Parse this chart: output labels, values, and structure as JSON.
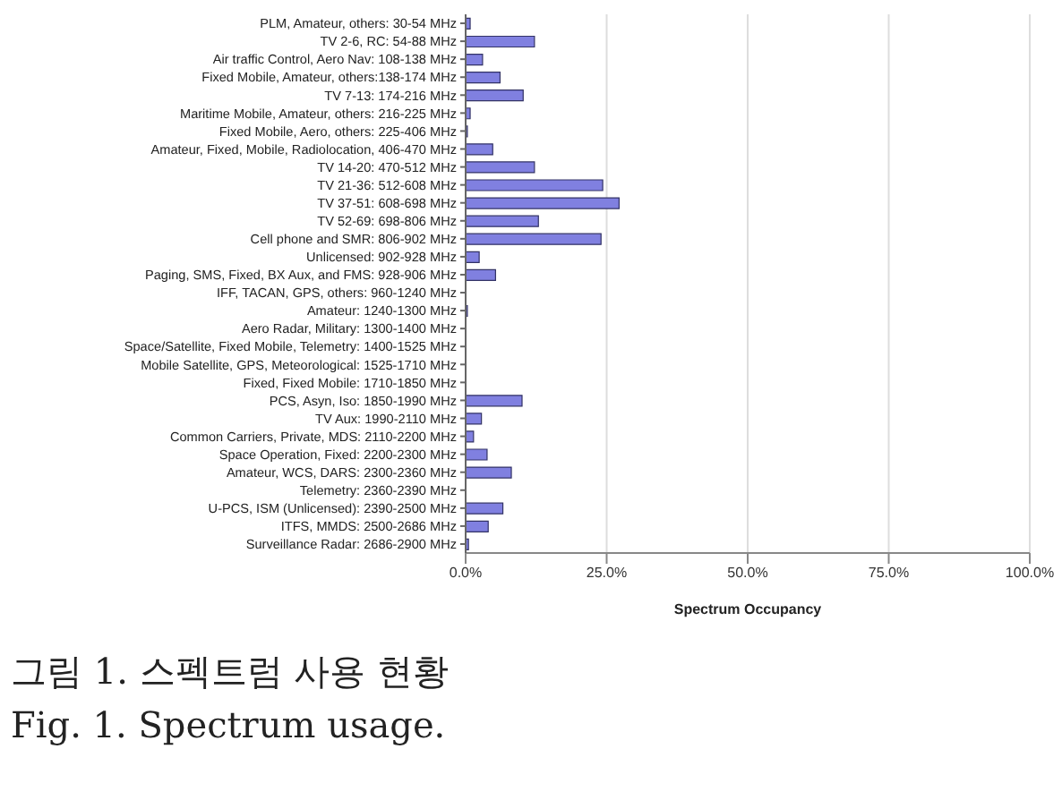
{
  "chart_data": {
    "type": "bar",
    "orientation": "horizontal",
    "xlabel": "Spectrum Occupancy",
    "categories": [
      "PLM, Amateur, others: 30-54 MHz",
      "TV 2-6, RC: 54-88 MHz",
      "Air traffic Control, Aero Nav: 108-138 MHz",
      "Fixed Mobile, Amateur, others:138-174 MHz",
      "TV 7-13: 174-216 MHz",
      "Maritime Mobile, Amateur, others: 216-225 MHz",
      "Fixed Mobile, Aero, others: 225-406 MHz",
      "Amateur, Fixed, Mobile, Radiolocation, 406-470 MHz",
      "TV 14-20: 470-512 MHz",
      "TV 21-36: 512-608 MHz",
      "TV 37-51: 608-698 MHz",
      "TV 52-69: 698-806 MHz",
      "Cell phone and SMR: 806-902 MHz",
      "Unlicensed: 902-928 MHz",
      "Paging, SMS, Fixed, BX Aux, and FMS: 928-906 MHz",
      "IFF, TACAN, GPS, others: 960-1240 MHz",
      "Amateur: 1240-1300 MHz",
      "Aero Radar, Military: 1300-1400 MHz",
      "Space/Satellite, Fixed Mobile, Telemetry: 1400-1525 MHz",
      "Mobile Satellite, GPS, Meteorological: 1525-1710 MHz",
      "Fixed, Fixed Mobile: 1710-1850 MHz",
      "PCS, Asyn, Iso: 1850-1990 MHz",
      "TV Aux: 1990-2110 MHz",
      "Common Carriers, Private, MDS: 2110-2200 MHz",
      "Space Operation, Fixed: 2200-2300 MHz",
      "Amateur, WCS, DARS: 2300-2360 MHz",
      "Telemetry: 2360-2390 MHz",
      "U-PCS, ISM (Unlicensed): 2390-2500 MHz",
      "ITFS, MMDS: 2500-2686 MHz",
      "Surveillance Radar: 2686-2900 MHz"
    ],
    "values": [
      0.8,
      12.2,
      3.0,
      6.1,
      10.2,
      0.8,
      0.3,
      4.8,
      12.2,
      24.3,
      27.2,
      12.9,
      24.0,
      2.4,
      5.3,
      0,
      0.3,
      0,
      0,
      0,
      0,
      10.0,
      2.8,
      1.4,
      3.8,
      8.1,
      0,
      6.6,
      4.0,
      0.5
    ],
    "color": "#8080e0",
    "xlim": [
      0,
      100
    ],
    "xticks": [
      {
        "value": 0,
        "label": "0.0%"
      },
      {
        "value": 25,
        "label": "25.0%"
      },
      {
        "value": 50,
        "label": "50.0%"
      },
      {
        "value": 75,
        "label": "75.0%"
      },
      {
        "value": 100,
        "label": "100.0%"
      }
    ],
    "grid": "x",
    "legend": false,
    "annotations": [
      "그림 1. 스펙트럼 사용 현황",
      "Fig. 1. Spectrum usage."
    ]
  }
}
